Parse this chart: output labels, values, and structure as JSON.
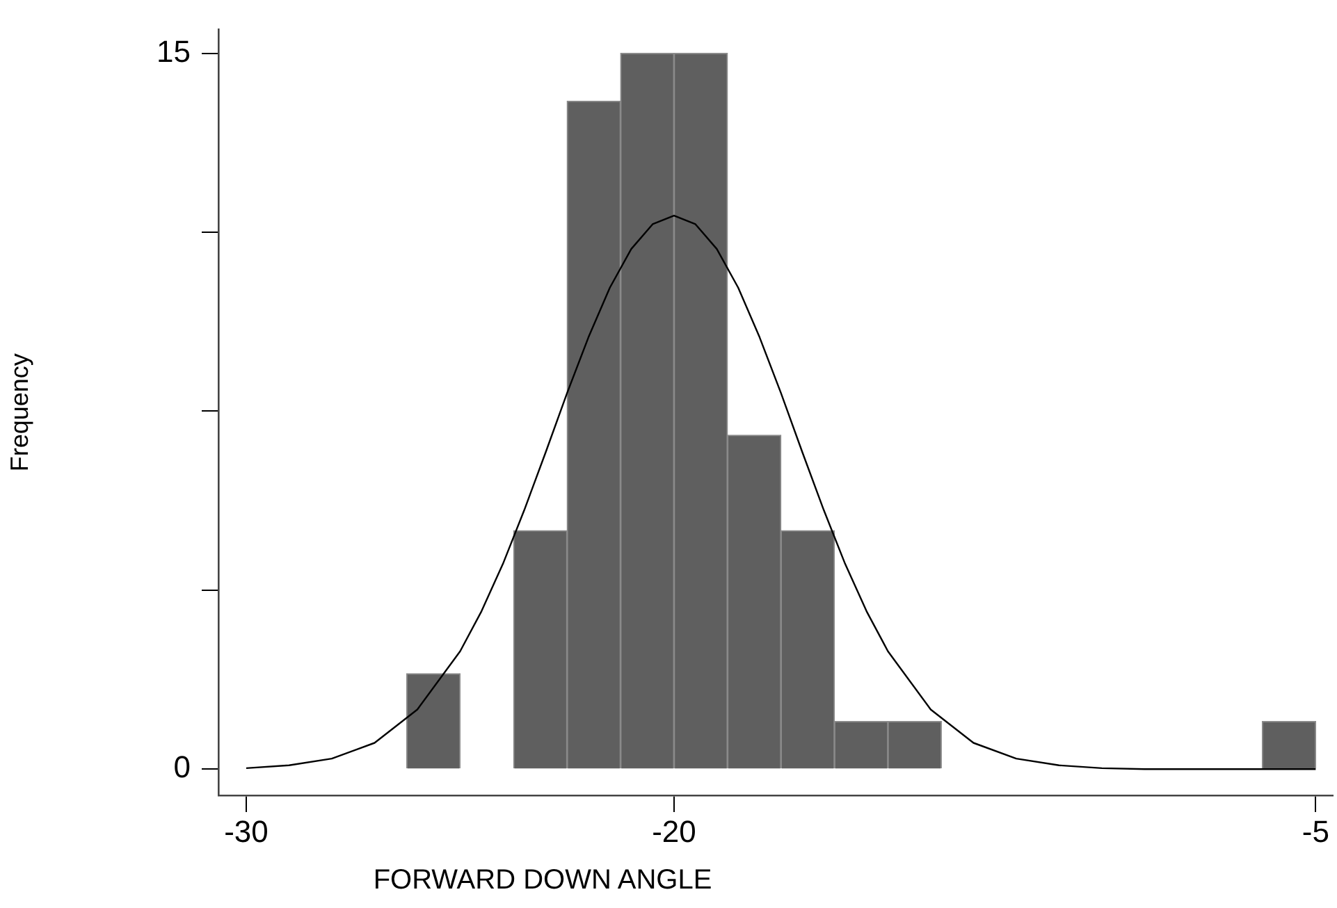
{
  "chart_data": {
    "type": "histogram",
    "xlabel": "FORWARD DOWN ANGLE",
    "ylabel": "Frequency",
    "bins": [
      -26.25,
      -25,
      -23.75,
      -22.5,
      -21.25,
      -20,
      -18.75,
      -17.5,
      -16.25,
      -15,
      -13.75,
      -12.5,
      -11.25,
      -10,
      -8.75,
      -7.5,
      -6.25,
      -5
    ],
    "values": [
      2,
      0,
      5,
      14,
      15,
      15,
      7,
      5,
      1,
      1,
      0,
      0,
      0,
      0,
      0,
      0,
      1
    ],
    "color": "#5f5f5f",
    "series": [
      {
        "type": "line",
        "color": "#000000",
        "x": [
          -30,
          -29,
          -28,
          -27,
          -26,
          -25,
          -24.5,
          -24,
          -23.5,
          -23,
          -22.5,
          -22,
          -21.5,
          -21,
          -20.5,
          -20,
          -19.5,
          -19,
          -18.5,
          -18,
          -17.5,
          -17,
          -16.5,
          -16,
          -15.5,
          -15,
          -14,
          -13,
          -12,
          -11,
          -10,
          -9,
          -8,
          -7,
          -6,
          -5
        ],
        "values": [
          0.02,
          0.08,
          0.22,
          0.55,
          1.25,
          2.47,
          3.31,
          4.3,
          5.43,
          6.64,
          7.88,
          9.05,
          10.09,
          10.9,
          11.42,
          11.6,
          11.42,
          10.9,
          10.09,
          9.05,
          7.88,
          6.64,
          5.43,
          4.3,
          3.31,
          2.47,
          1.25,
          0.55,
          0.22,
          0.08,
          0.02,
          0,
          0,
          0,
          0,
          0
        ]
      }
    ],
    "xlim": [
      -30.65,
      -4.6
    ],
    "xticks": [
      -30,
      -20,
      -5
    ],
    "ylim": [
      -0.55,
      15.5
    ],
    "yticks": [
      0,
      {
        "value": 3.75,
        "label": null
      },
      {
        "value": 7.5,
        "label": null
      },
      {
        "value": 11.25,
        "label": null
      },
      15
    ],
    "grid": false,
    "legend": false
  }
}
